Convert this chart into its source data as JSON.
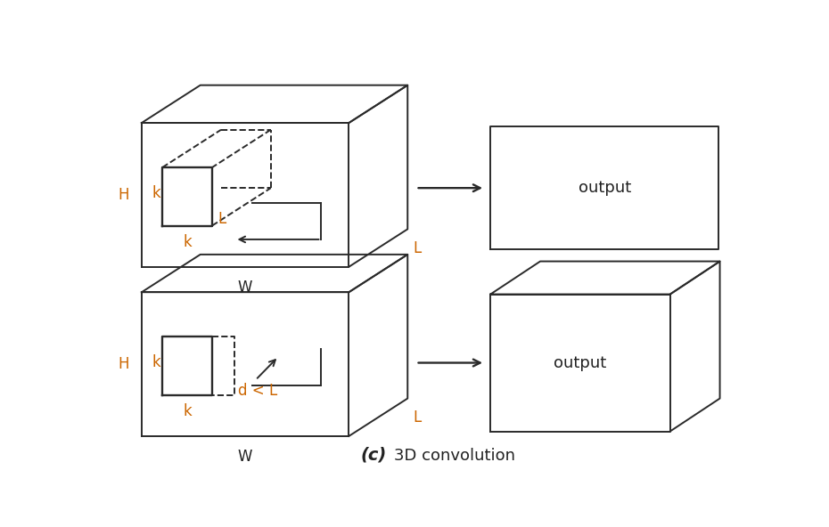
{
  "bg_color": "#ffffff",
  "line_color": "#2a2a2a",
  "label_color_orange": "#cc6600",
  "label_color_black": "#222222",
  "title_fontsize": 13,
  "label_fontsize": 12,
  "output_label": "output",
  "title_text": "3D convolution",
  "title_c": "(c)"
}
